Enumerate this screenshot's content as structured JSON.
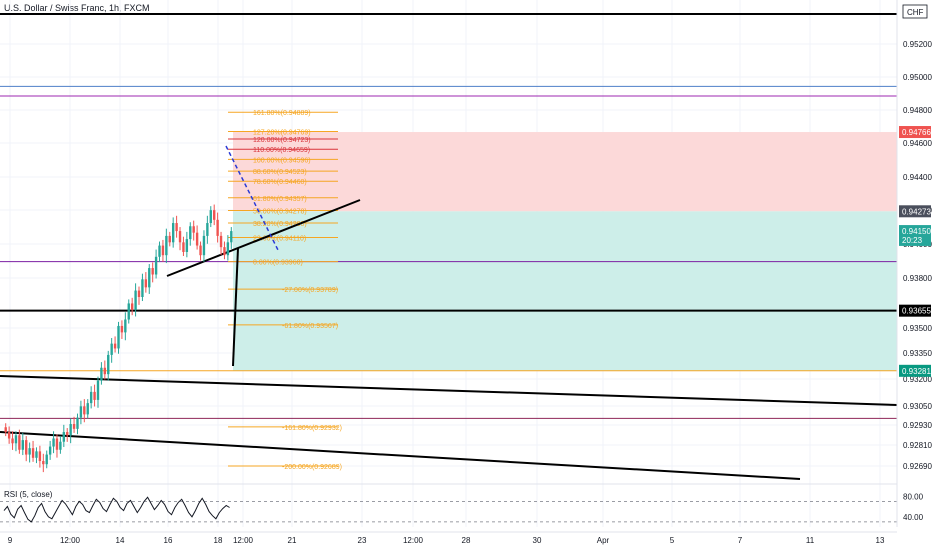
{
  "header": {
    "symbol_title": "U.S. Dollar / Swiss Franc, 1h, FXCM"
  },
  "colors": {
    "up": "#26a69a",
    "down": "#ef5350",
    "fib": "#f5a623",
    "fib_red": "#d9343a",
    "zone_loss": "#fcd9d9",
    "zone_profit": "#cdeee9",
    "grid": "#f0f3fa",
    "rsi_line": "#131722",
    "price_axis_text": "#131722"
  },
  "chart_data": [
    {
      "type": "candlestick",
      "title": "U.S. Dollar / Swiss Franc, 1h, FXCM",
      "ylim": [
        0.926,
        0.956
      ],
      "y_ticks": [
        "0.95200",
        "0.95000",
        "0.94800",
        "0.94600",
        "0.94400",
        "0.94200",
        "0.94000",
        "0.93800",
        "0.93500",
        "0.93350",
        "0.93200",
        "0.93050",
        "0.92930",
        "0.92810",
        "0.92690"
      ],
      "x_ticks": [
        "9",
        "12:00",
        "14",
        "16",
        "18",
        "12:00",
        "21",
        "23",
        "12:00",
        "28",
        "30",
        "Apr",
        "5",
        "7",
        "11",
        "13"
      ],
      "currency_label": "CHF",
      "price_labels": [
        {
          "text": "0.94766",
          "value": 0.94766,
          "color": "#ef5350"
        },
        {
          "text": "0.94273",
          "value": 0.94273,
          "color": "#4a4f5c"
        },
        {
          "text": "0.94150",
          "value": 0.9415,
          "color": "#26a69a"
        },
        {
          "text": "20:23",
          "value": 0.94095,
          "color": "#26a69a"
        },
        {
          "text": "0.93655",
          "value": 0.93655,
          "color": "#000000"
        },
        {
          "text": "0.93281",
          "value": 0.93281,
          "color": "#089981"
        }
      ],
      "fib_levels": [
        {
          "label": "161.80%(0.94889)",
          "value": 0.94889
        },
        {
          "label": "127.20%(0.94769)",
          "value": 0.94769
        },
        {
          "label": "120.00%(0.94723)",
          "value": 0.94723
        },
        {
          "label": "110.00%(0.94659)",
          "value": 0.94659
        },
        {
          "label": "100.00%(0.94596)",
          "value": 0.94596
        },
        {
          "label": "88.60%(0.94523)",
          "value": 0.94523
        },
        {
          "label": "78.60%(0.94460)",
          "value": 0.9446
        },
        {
          "label": "61.80%(0.94357)",
          "value": 0.94357
        },
        {
          "label": "50.00%(0.94278)",
          "value": 0.94278
        },
        {
          "label": "38.20%(0.94200)",
          "value": 0.942
        },
        {
          "label": "23.60%(0.94110)",
          "value": 0.9411
        },
        {
          "label": "0.00%(0.93960)",
          "value": 0.9396
        },
        {
          "label": "-27.00%(0.93789)",
          "value": 0.93789
        },
        {
          "label": "-61.80%(0.93567)",
          "value": 0.93567
        },
        {
          "label": "-161.80%(0.92932)",
          "value": 0.92932
        },
        {
          "label": "-200.00%(0.92689)",
          "value": 0.92689
        }
      ],
      "horizontal_lines": [
        {
          "name": "top-resistance",
          "value": 0.955,
          "color": "#000000"
        },
        {
          "name": "blue-level",
          "value": 0.9505,
          "color": "#4e7fc8"
        },
        {
          "name": "purple-level",
          "value": 0.9499,
          "color": "#9c27b0"
        },
        {
          "name": "support-level",
          "value": 0.93655,
          "color": "#000000"
        },
        {
          "name": "entry-level",
          "value": 0.9396,
          "color": "#7b1fa2"
        },
        {
          "name": "target-level",
          "value": 0.93281,
          "color": "#f5a623"
        },
        {
          "name": "low-level",
          "value": 0.92985,
          "color": "#8e2457"
        }
      ],
      "position": {
        "entry": 0.9396,
        "stop": 0.94766,
        "target": 0.93281
      },
      "candles_close": [
        0.929,
        0.9286,
        0.9283,
        0.9288,
        0.9279,
        0.9285,
        0.9276,
        0.928,
        0.9274,
        0.9278,
        0.9272,
        0.927,
        0.9276,
        0.9281,
        0.9286,
        0.9279,
        0.9284,
        0.929,
        0.9288,
        0.9295,
        0.9292,
        0.9299,
        0.9306,
        0.9301,
        0.9308,
        0.9315,
        0.931,
        0.9322,
        0.933,
        0.9326,
        0.9338,
        0.9345,
        0.9342,
        0.9356,
        0.9352,
        0.936,
        0.937,
        0.9366,
        0.9378,
        0.9374,
        0.9385,
        0.938,
        0.9392,
        0.9388,
        0.9399,
        0.9406,
        0.94,
        0.9412,
        0.9408,
        0.942,
        0.9415,
        0.9408,
        0.9402,
        0.941,
        0.9418,
        0.9414,
        0.9406,
        0.94,
        0.9412,
        0.942,
        0.9428,
        0.9422,
        0.9412,
        0.9405,
        0.94,
        0.9408,
        0.9415
      ],
      "rsi": {
        "label": "RSI (5, close)",
        "ylim": [
          20,
          100
        ],
        "y_ticks": [
          "80.00",
          "40.00"
        ],
        "guides": [
          70,
          30
        ],
        "values": [
          52,
          60,
          45,
          38,
          55,
          62,
          48,
          35,
          30,
          42,
          58,
          66,
          50,
          40,
          36,
          48,
          60,
          72,
          65,
          55,
          44,
          60,
          70,
          64,
          52,
          48,
          62,
          74,
          68,
          56,
          50,
          64,
          76,
          70,
          58,
          52,
          66,
          72,
          60,
          48,
          58,
          70,
          78,
          66,
          54,
          62,
          72,
          64,
          50,
          44,
          58,
          68,
          74,
          62,
          48,
          40,
          52,
          66,
          76,
          64,
          50,
          42,
          36,
          48,
          56,
          62,
          58
        ]
      }
    }
  ]
}
